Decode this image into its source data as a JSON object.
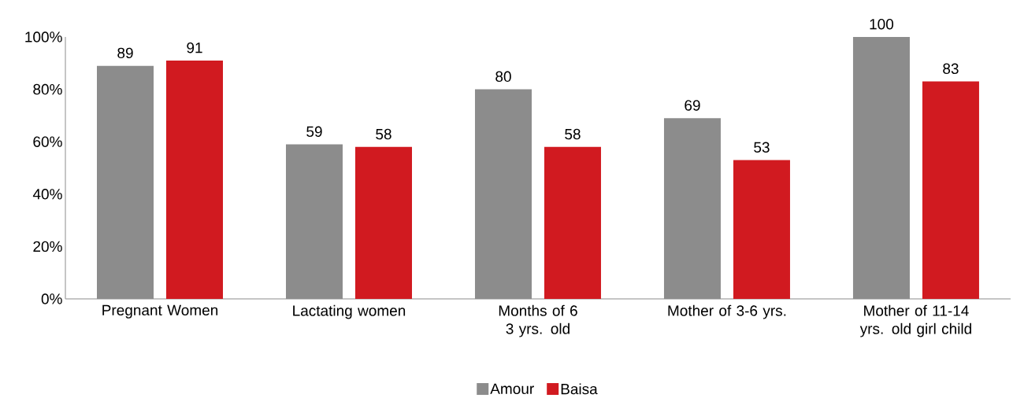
{
  "chart_data": {
    "type": "bar",
    "categories": [
      "Pregnant Women",
      "Lactating women",
      "Months of 6 3 yrs. old",
      "Mother of 3-6 yrs.",
      "Mother of 11-14 yrs. old girl child"
    ],
    "series": [
      {
        "name": "Amour",
        "color": "#8c8c8c",
        "values": [
          89,
          59,
          80,
          69,
          100
        ]
      },
      {
        "name": "Baisa",
        "color": "#d11a20",
        "values": [
          91,
          58,
          58,
          53,
          83
        ]
      }
    ],
    "ylim": [
      0,
      100
    ],
    "yticks": [
      {
        "value": 0,
        "label": "0%"
      },
      {
        "value": 20,
        "label": "20%"
      },
      {
        "value": 40,
        "label": "40%"
      },
      {
        "value": 60,
        "label": "60%"
      },
      {
        "value": 80,
        "label": "80%"
      },
      {
        "value": 100,
        "label": "100%"
      }
    ],
    "data_labels": true,
    "legend": "bottom"
  }
}
